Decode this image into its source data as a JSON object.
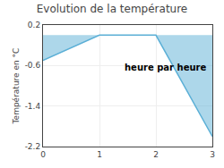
{
  "chart_data": {
    "type": "area",
    "title": "Evolution de la température",
    "xlabel": "heure par heure",
    "ylabel": "Température en °C",
    "x": [
      0,
      1,
      2,
      3
    ],
    "values": [
      -0.5,
      0.0,
      0.0,
      -2.0
    ],
    "color": "#5bafd6",
    "xlim": [
      0,
      3
    ],
    "ylim": [
      -2.2,
      0.2
    ],
    "xticks": [
      0,
      1,
      2,
      3
    ],
    "yticks": [
      0.2,
      -0.6,
      -1.4,
      -2.2
    ],
    "grid": true
  }
}
